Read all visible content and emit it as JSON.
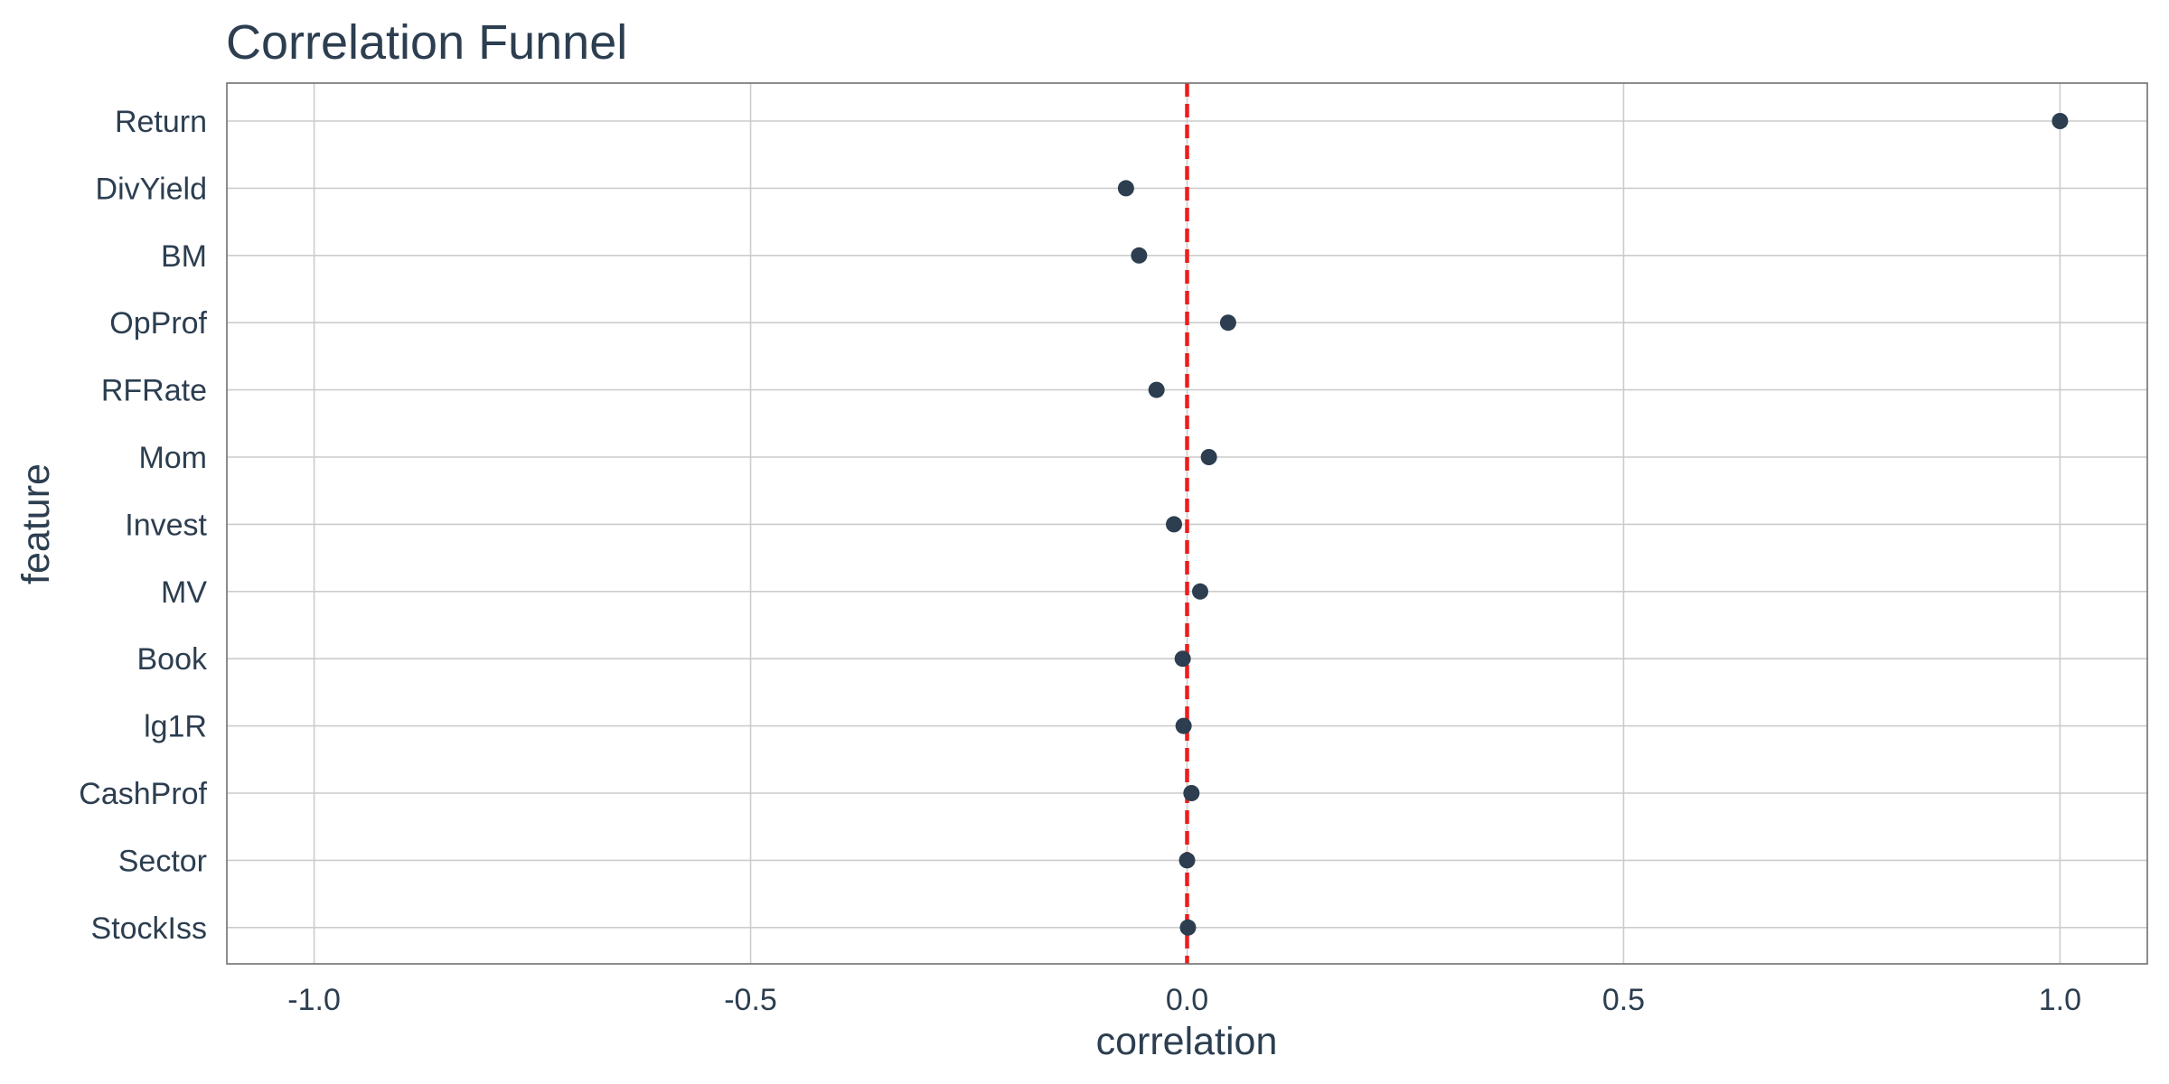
{
  "chart_data": {
    "type": "scatter",
    "title": "Correlation Funnel",
    "xlabel": "correlation",
    "ylabel": "feature",
    "xlim": [
      -1.1,
      1.1
    ],
    "x_ticks": [
      -1.0,
      -0.5,
      0.0,
      0.5,
      1.0
    ],
    "x_tick_labels": [
      "-1.0",
      "-0.5",
      "0.0",
      "0.5",
      "1.0"
    ],
    "grid": true,
    "legend": "none",
    "reference_line": {
      "x": 0.0,
      "style": "dashed",
      "color": "#ee1c1c"
    },
    "colors": {
      "text": "#2c3e50",
      "points": "#2c3e50",
      "grid": "#cccccc",
      "panel_border": "#707070",
      "reference_line": "#ee1c1c"
    },
    "categories": [
      "Return",
      "DivYield",
      "BM",
      "OpProf",
      "RFRate",
      "Mom",
      "Invest",
      "MV",
      "Book",
      "lg1R",
      "CashProf",
      "Sector",
      "StockIss"
    ],
    "values": [
      1.0,
      -0.07,
      -0.055,
      0.047,
      -0.035,
      0.025,
      -0.015,
      0.015,
      -0.005,
      -0.004,
      0.005,
      0.0,
      0.001
    ]
  }
}
